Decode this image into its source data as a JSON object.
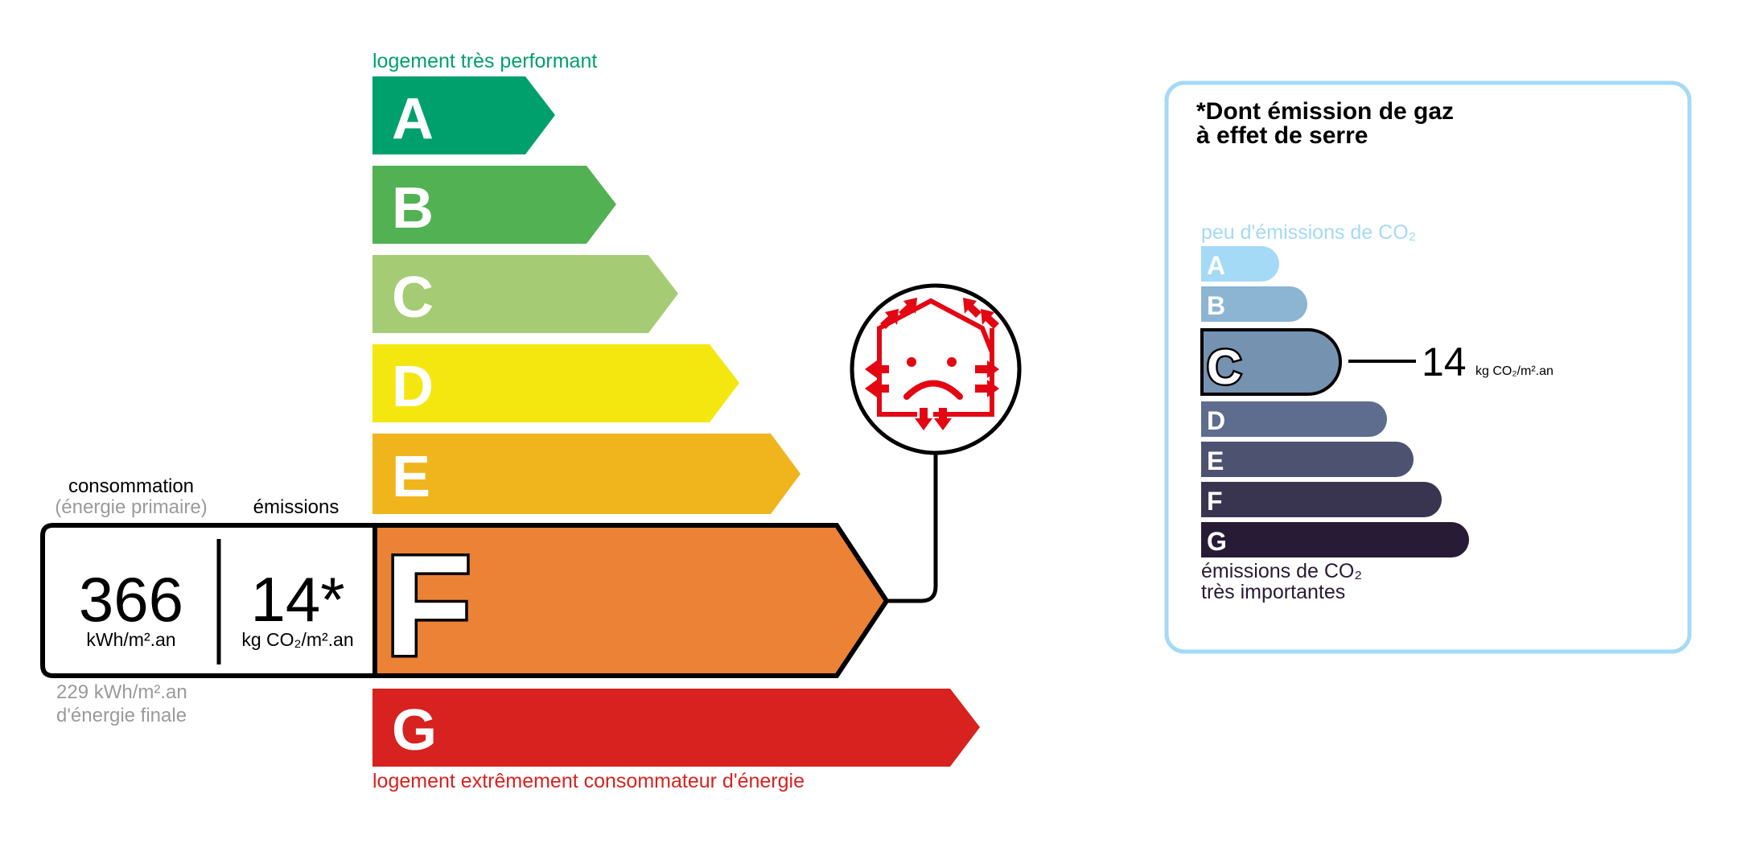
{
  "energy_label": {
    "top_caption": "logement très performant",
    "bottom_caption": "logement extrêmement consommateur d'énergie",
    "classes": [
      {
        "letter": "A",
        "color": "#00A06D"
      },
      {
        "letter": "B",
        "color": "#52B153"
      },
      {
        "letter": "C",
        "color": "#A5CC74"
      },
      {
        "letter": "D",
        "color": "#F4E70F"
      },
      {
        "letter": "E",
        "color": "#F0B41C"
      },
      {
        "letter": "F",
        "color": "#EB8235"
      },
      {
        "letter": "G",
        "color": "#D7221F"
      }
    ],
    "current_class": "F",
    "consumption_header": "consommation",
    "consumption_subheader": "(énergie primaire)",
    "emissions_header": "émissions",
    "consumption_value": "366",
    "consumption_unit": "kWh/m².an",
    "emissions_value": "14*",
    "emissions_unit": "kg CO₂/m².an",
    "final_energy_value": "229 kWh/m².an",
    "final_energy_label": "d'énergie finale",
    "badge_icon": "sad-house-heat-loss-icon",
    "badge_color": "#E30613"
  },
  "ghg_panel": {
    "title_line1": "*Dont émission de gaz",
    "title_line2": "à effet de serre",
    "top_caption": "peu d'émissions de CO₂",
    "bottom_caption_line1": "émissions de CO₂",
    "bottom_caption_line2": "très importantes",
    "border_color": "#A4DAF6",
    "classes": [
      {
        "letter": "A",
        "color": "#A4DAF6"
      },
      {
        "letter": "B",
        "color": "#8CB4D3"
      },
      {
        "letter": "C",
        "color": "#7692B1"
      },
      {
        "letter": "D",
        "color": "#5E6C8E"
      },
      {
        "letter": "E",
        "color": "#4D5271"
      },
      {
        "letter": "F",
        "color": "#393551"
      },
      {
        "letter": "G",
        "color": "#281B35"
      }
    ],
    "current_class": "C",
    "value": "14",
    "unit": "kg CO₂/m².an"
  }
}
